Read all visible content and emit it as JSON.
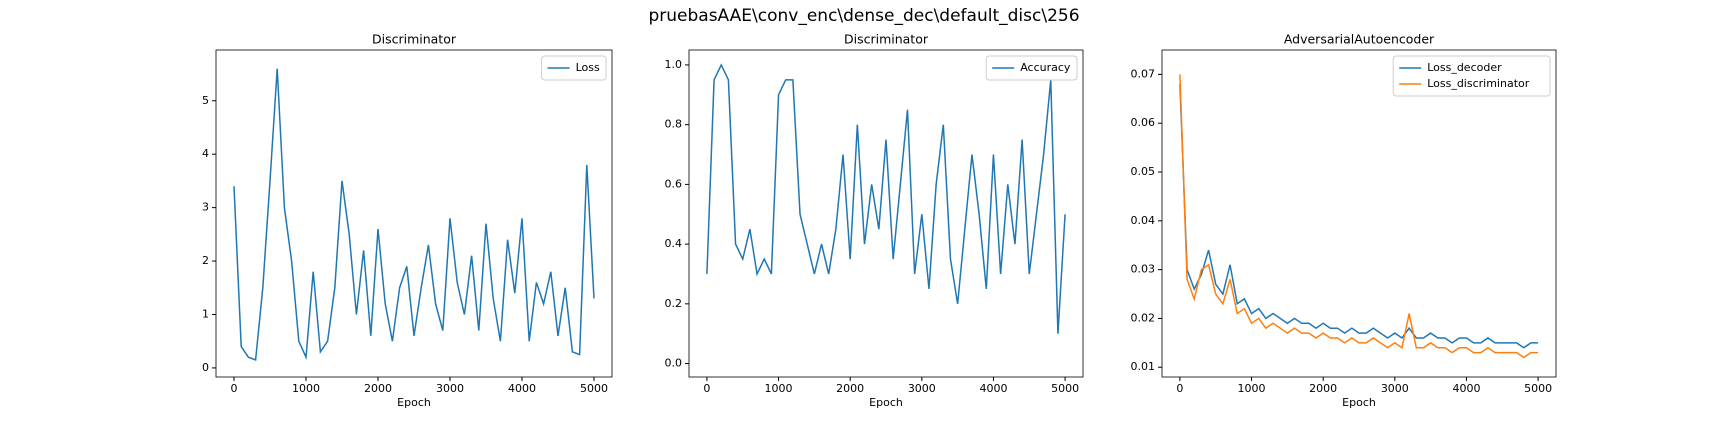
{
  "title": "pruebasAAE\\conv_enc\\dense_dec\\default_disc\\256",
  "chart_data": [
    {
      "type": "line",
      "title": "Discriminator",
      "xlabel": "Epoch",
      "x": [
        0,
        100,
        200,
        300,
        400,
        500,
        600,
        700,
        800,
        900,
        1000,
        1100,
        1200,
        1300,
        1400,
        1500,
        1600,
        1700,
        1800,
        1900,
        2000,
        2100,
        2200,
        2300,
        2400,
        2500,
        2600,
        2700,
        2800,
        2900,
        3000,
        3100,
        3200,
        3300,
        3400,
        3500,
        3600,
        3700,
        3800,
        3900,
        4000,
        4100,
        4200,
        4300,
        4400,
        4500,
        4600,
        4700,
        4800,
        4900,
        5000
      ],
      "series": [
        {
          "name": "Loss",
          "color": "#1f77b4",
          "values": [
            3.4,
            0.4,
            0.2,
            0.15,
            1.5,
            3.5,
            5.6,
            3.0,
            2.0,
            0.5,
            0.2,
            1.8,
            0.3,
            0.5,
            1.5,
            3.5,
            2.5,
            1.0,
            2.2,
            0.6,
            2.6,
            1.2,
            0.5,
            1.5,
            1.9,
            0.6,
            1.5,
            2.3,
            1.2,
            0.7,
            2.8,
            1.6,
            1.0,
            2.1,
            0.7,
            2.7,
            1.3,
            0.5,
            2.4,
            1.4,
            2.8,
            0.5,
            1.6,
            1.2,
            1.8,
            0.6,
            1.5,
            0.3,
            0.25,
            3.8,
            1.3
          ]
        }
      ],
      "xlim": [
        -250,
        5250
      ],
      "xticks": [
        0,
        1000,
        2000,
        3000,
        4000,
        5000
      ],
      "ylim": [
        -0.17,
        5.95
      ],
      "yticks": [
        0,
        1,
        2,
        3,
        4,
        5
      ],
      "legend": "upper right"
    },
    {
      "type": "line",
      "title": "Discriminator",
      "xlabel": "Epoch",
      "x": [
        0,
        100,
        200,
        300,
        400,
        500,
        600,
        700,
        800,
        900,
        1000,
        1100,
        1200,
        1300,
        1400,
        1500,
        1600,
        1700,
        1800,
        1900,
        2000,
        2100,
        2200,
        2300,
        2400,
        2500,
        2600,
        2700,
        2800,
        2900,
        3000,
        3100,
        3200,
        3300,
        3400,
        3500,
        3600,
        3700,
        3800,
        3900,
        4000,
        4100,
        4200,
        4300,
        4400,
        4500,
        4600,
        4700,
        4800,
        4900,
        5000
      ],
      "series": [
        {
          "name": "Accuracy",
          "color": "#1f77b4",
          "values": [
            0.3,
            0.95,
            1.0,
            0.95,
            0.4,
            0.35,
            0.45,
            0.3,
            0.35,
            0.3,
            0.9,
            0.95,
            0.95,
            0.5,
            0.4,
            0.3,
            0.4,
            0.3,
            0.45,
            0.7,
            0.35,
            0.8,
            0.4,
            0.6,
            0.45,
            0.75,
            0.35,
            0.6,
            0.85,
            0.3,
            0.5,
            0.25,
            0.6,
            0.8,
            0.35,
            0.2,
            0.45,
            0.7,
            0.5,
            0.25,
            0.7,
            0.3,
            0.6,
            0.4,
            0.75,
            0.3,
            0.5,
            0.7,
            0.95,
            0.1,
            0.5
          ]
        }
      ],
      "xlim": [
        -250,
        5250
      ],
      "xticks": [
        0,
        1000,
        2000,
        3000,
        4000,
        5000
      ],
      "ylim": [
        -0.045,
        1.05
      ],
      "yticks": [
        {
          "value": 0,
          "label": "0.0"
        },
        0.2,
        0.4,
        0.6,
        0.8,
        {
          "value": 1,
          "label": "1.0"
        }
      ],
      "legend": "upper right"
    },
    {
      "type": "line",
      "title": "AdversarialAutoencoder",
      "xlabel": "Epoch",
      "x": [
        0,
        100,
        200,
        300,
        400,
        500,
        600,
        700,
        800,
        900,
        1000,
        1100,
        1200,
        1300,
        1400,
        1500,
        1600,
        1700,
        1800,
        1900,
        2000,
        2100,
        2200,
        2300,
        2400,
        2500,
        2600,
        2700,
        2800,
        2900,
        3000,
        3100,
        3200,
        3300,
        3400,
        3500,
        3600,
        3700,
        3800,
        3900,
        4000,
        4100,
        4200,
        4300,
        4400,
        4500,
        4600,
        4700,
        4800,
        4900,
        5000
      ],
      "series": [
        {
          "name": "Loss_decoder",
          "color": "#1f77b4",
          "values": [
            0.068,
            0.03,
            0.026,
            0.029,
            0.034,
            0.027,
            0.025,
            0.031,
            0.023,
            0.024,
            0.021,
            0.022,
            0.02,
            0.021,
            0.02,
            0.019,
            0.02,
            0.019,
            0.019,
            0.018,
            0.019,
            0.018,
            0.018,
            0.017,
            0.018,
            0.017,
            0.017,
            0.018,
            0.017,
            0.016,
            0.017,
            0.016,
            0.018,
            0.016,
            0.016,
            0.017,
            0.016,
            0.016,
            0.015,
            0.016,
            0.016,
            0.015,
            0.015,
            0.016,
            0.015,
            0.015,
            0.015,
            0.015,
            0.014,
            0.015,
            0.015
          ]
        },
        {
          "name": "Loss_discriminator",
          "color": "#ff7f0e",
          "values": [
            0.07,
            0.028,
            0.024,
            0.03,
            0.031,
            0.025,
            0.023,
            0.028,
            0.021,
            0.022,
            0.019,
            0.02,
            0.018,
            0.019,
            0.018,
            0.017,
            0.018,
            0.017,
            0.017,
            0.016,
            0.017,
            0.016,
            0.016,
            0.015,
            0.016,
            0.015,
            0.015,
            0.016,
            0.015,
            0.014,
            0.015,
            0.014,
            0.021,
            0.014,
            0.014,
            0.015,
            0.014,
            0.014,
            0.013,
            0.014,
            0.014,
            0.013,
            0.013,
            0.014,
            0.013,
            0.013,
            0.013,
            0.013,
            0.012,
            0.013,
            0.013
          ]
        }
      ],
      "xlim": [
        -250,
        5250
      ],
      "xticks": [
        0,
        1000,
        2000,
        3000,
        4000,
        5000
      ],
      "ylim": [
        0.008,
        0.075
      ],
      "yticks": [
        0.01,
        0.02,
        0.03,
        0.04,
        0.05,
        0.06,
        0.07
      ],
      "legend": "upper right"
    }
  ]
}
